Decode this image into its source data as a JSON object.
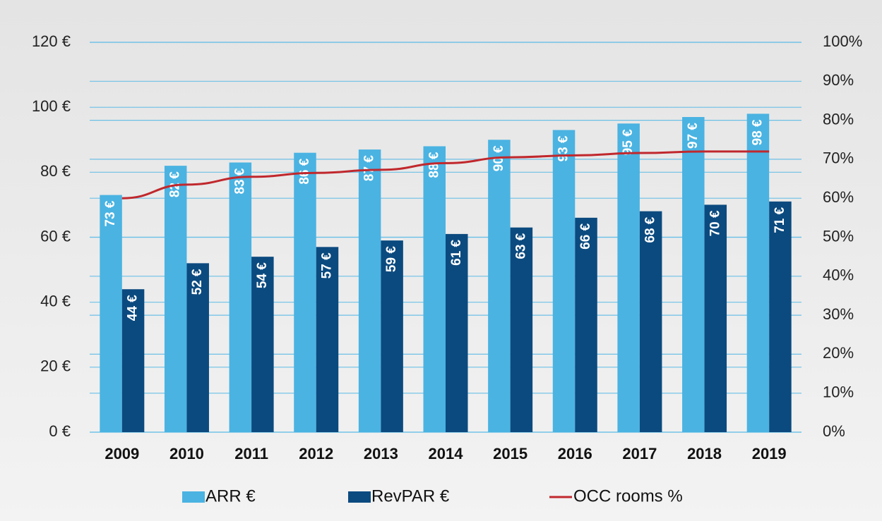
{
  "chart_data": {
    "type": "bar",
    "categories": [
      "2009",
      "2010",
      "2011",
      "2012",
      "2013",
      "2014",
      "2015",
      "2016",
      "2017",
      "2018",
      "2019"
    ],
    "series": [
      {
        "name": "ARR €",
        "color": "#4ab3e2",
        "values": [
          73,
          82,
          83,
          86,
          87,
          88,
          90,
          93,
          95,
          97,
          98
        ],
        "value_labels": [
          "73 €",
          "82 €",
          "83 €",
          "86 €",
          "87 €",
          "88 €",
          "90 €",
          "93 €",
          "95 €",
          "97 €",
          "98 €"
        ]
      },
      {
        "name": "RevPAR €",
        "color": "#0b4a7f",
        "values": [
          44,
          52,
          54,
          57,
          59,
          61,
          63,
          66,
          68,
          70,
          71
        ],
        "value_labels": [
          "44 €",
          "52 €",
          "54 €",
          "57 €",
          "59 €",
          "61 €",
          "63 €",
          "66 €",
          "68 €",
          "70 €",
          "71 €"
        ]
      },
      {
        "name": "OCC rooms %",
        "color": "#c0282d",
        "type": "line",
        "axis": "y2",
        "values": [
          60,
          63.5,
          65.5,
          66.5,
          67.3,
          69,
          70.5,
          71,
          71.6,
          72,
          72
        ]
      }
    ],
    "ylim": [
      0,
      120
    ],
    "yticks": [
      {
        "value": 0,
        "label": "0 €"
      },
      {
        "value": 20,
        "label": "20 €"
      },
      {
        "value": 40,
        "label": "40 €"
      },
      {
        "value": 60,
        "label": "60 €"
      },
      {
        "value": 80,
        "label": "80 €"
      },
      {
        "value": 100,
        "label": "100 €"
      },
      {
        "value": 120,
        "label": "120 €"
      }
    ],
    "y2lim": [
      0,
      100
    ],
    "y2ticks": [
      {
        "value": 0,
        "label": "0%"
      },
      {
        "value": 10,
        "label": "10%"
      },
      {
        "value": 20,
        "label": "20%"
      },
      {
        "value": 30,
        "label": "30%"
      },
      {
        "value": 40,
        "label": "40%"
      },
      {
        "value": 50,
        "label": "50%"
      },
      {
        "value": 60,
        "label": "60%"
      },
      {
        "value": 70,
        "label": "70%"
      },
      {
        "value": 80,
        "label": "80%"
      },
      {
        "value": 90,
        "label": "90%"
      },
      {
        "value": 100,
        "label": "100%"
      }
    ],
    "grid": true,
    "legend": "bottom"
  }
}
